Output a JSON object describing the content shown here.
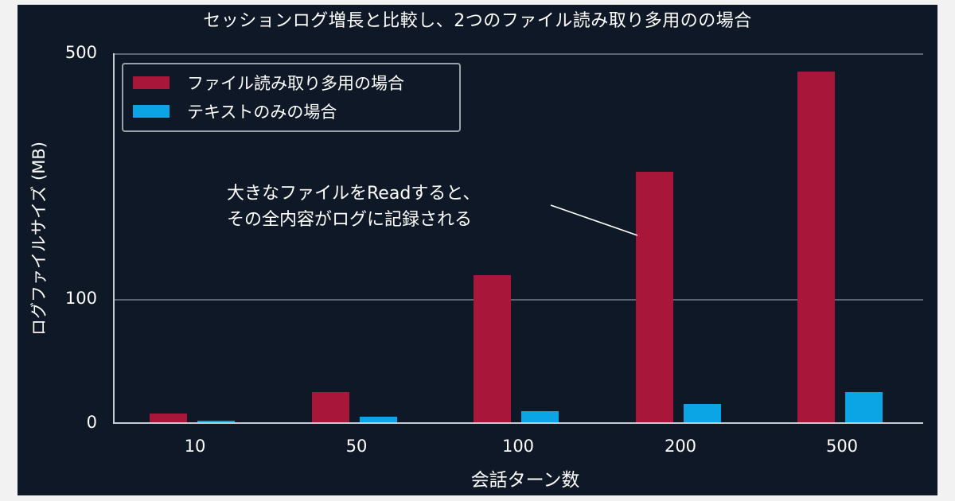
{
  "chart_data": {
    "type": "bar",
    "title": "セッションログ増長と比較し、2つのファイル読み取り多用のの場合",
    "xlabel": "会話ターン数",
    "ylabel": "ログファイルサイズ (MB)",
    "categories": [
      "10",
      "50",
      "100",
      "200",
      "500"
    ],
    "series": [
      {
        "name": "ファイル読み取り多用の場合",
        "color": "#a8173a",
        "values": [
          2.3,
          13,
          130,
          283,
          465
        ]
      },
      {
        "name": "テキストのみの場合",
        "color": "#0ba5e6",
        "values": [
          0.3,
          1.3,
          3.2,
          6.3,
          13
        ]
      }
    ],
    "yticks": [
      0,
      100,
      500
    ],
    "ylim": [
      0,
      500
    ],
    "yscale": "power (non-linear, compressed)",
    "grid": true,
    "legend_position": "upper left",
    "annotation": {
      "lines": [
        "大きなファイルをReadすると、",
        "その全内容がログに記録される"
      ],
      "points_to": "200 / ファイル読み取り多用の場合"
    }
  },
  "title": "セッションログ増長と比較し、2つのファイル読み取り多用のの場合",
  "axes": {
    "ylabel": "ログファイルサイズ (MB)",
    "xlabel": "会話ターン数",
    "yticks": [
      "0",
      "100",
      "500"
    ],
    "xticks": [
      "10",
      "50",
      "100",
      "200",
      "500"
    ]
  },
  "legend": {
    "items": [
      {
        "label": "ファイル読み取り多用の場合",
        "color": "#a8173a"
      },
      {
        "label": "テキストのみの場合",
        "color": "#0ba5e6"
      }
    ]
  },
  "annotation": {
    "line1": "大きなファイルをReadすると、",
    "line2": "その全内容がログに記録される"
  }
}
